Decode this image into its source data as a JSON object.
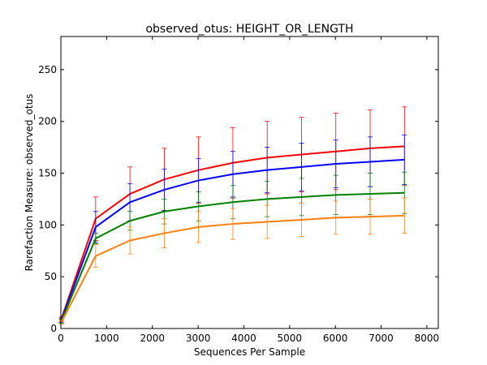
{
  "chart_data": {
    "type": "line",
    "title": "observed_otus: HEIGHT_OR_LENGTH",
    "xlabel": "Sequences Per Sample",
    "ylabel": "Rarefaction Measure: observed_otus",
    "xlim": [
      0,
      8250
    ],
    "ylim": [
      0,
      282
    ],
    "xticks": [
      0,
      1000,
      2000,
      3000,
      4000,
      5000,
      6000,
      7000,
      8000
    ],
    "yticks": [
      0,
      50,
      100,
      150,
      200,
      250
    ],
    "grid": false,
    "x": [
      10,
      760,
      1510,
      2260,
      3010,
      3760,
      4510,
      5260,
      6010,
      6760,
      7510
    ],
    "series": [
      {
        "color": "#ff0000",
        "values": [
          9,
          106,
          130,
          144,
          153,
          160,
          165,
          168,
          171,
          174,
          176
        ],
        "errors": [
          2,
          21,
          26,
          30,
          32,
          34,
          35,
          36,
          37,
          37,
          38
        ]
      },
      {
        "color": "#0000ff",
        "values": [
          8,
          98,
          122,
          134,
          143,
          149,
          153,
          156,
          159,
          161,
          163
        ],
        "errors": [
          2,
          15,
          18,
          20,
          21,
          22,
          22,
          23,
          23,
          24,
          24
        ]
      },
      {
        "color": "#008000",
        "values": [
          7,
          87,
          104,
          113,
          118,
          122,
          125,
          127,
          129,
          130,
          131
        ],
        "errors": [
          2,
          5,
          9,
          12,
          14,
          16,
          17,
          18,
          19,
          20,
          20
        ]
      },
      {
        "color": "#ff7f0e",
        "values": [
          6,
          70,
          85,
          92,
          98,
          101,
          103,
          105,
          107,
          108,
          109
        ],
        "errors": [
          2,
          11,
          13,
          14,
          15,
          15,
          16,
          16,
          16,
          17,
          17
        ]
      }
    ]
  }
}
